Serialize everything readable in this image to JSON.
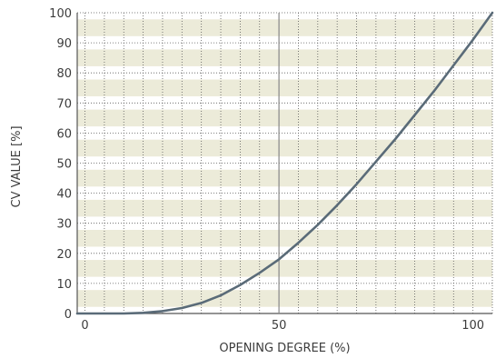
{
  "chart_data": {
    "type": "line",
    "title": "",
    "xlabel": "OPENING DEGREE (%)",
    "ylabel": "CV VALUE [%]",
    "xlim": [
      -2,
      105
    ],
    "ylim": [
      0,
      100
    ],
    "x_ticks": [
      0,
      50,
      100
    ],
    "y_ticks": [
      0,
      10,
      20,
      30,
      40,
      50,
      60,
      70,
      80,
      90,
      100
    ],
    "grid": true,
    "legend": "none",
    "colors": {
      "line": "#5a6b78",
      "band": "#ecebd9",
      "grid": "#5a5a5a",
      "axis": "#555555"
    },
    "series": [
      {
        "x": [
          -2,
          10,
          15,
          20,
          25,
          30,
          35,
          40,
          45,
          50,
          55,
          60,
          65,
          70,
          75,
          80,
          85,
          90,
          95,
          100,
          105
        ],
        "values": [
          0,
          0,
          0.2,
          0.8,
          1.8,
          3.5,
          6,
          9.5,
          13.5,
          18,
          23.5,
          29.5,
          36,
          43,
          50.5,
          58,
          66,
          74,
          82.5,
          91,
          100
        ]
      }
    ]
  }
}
